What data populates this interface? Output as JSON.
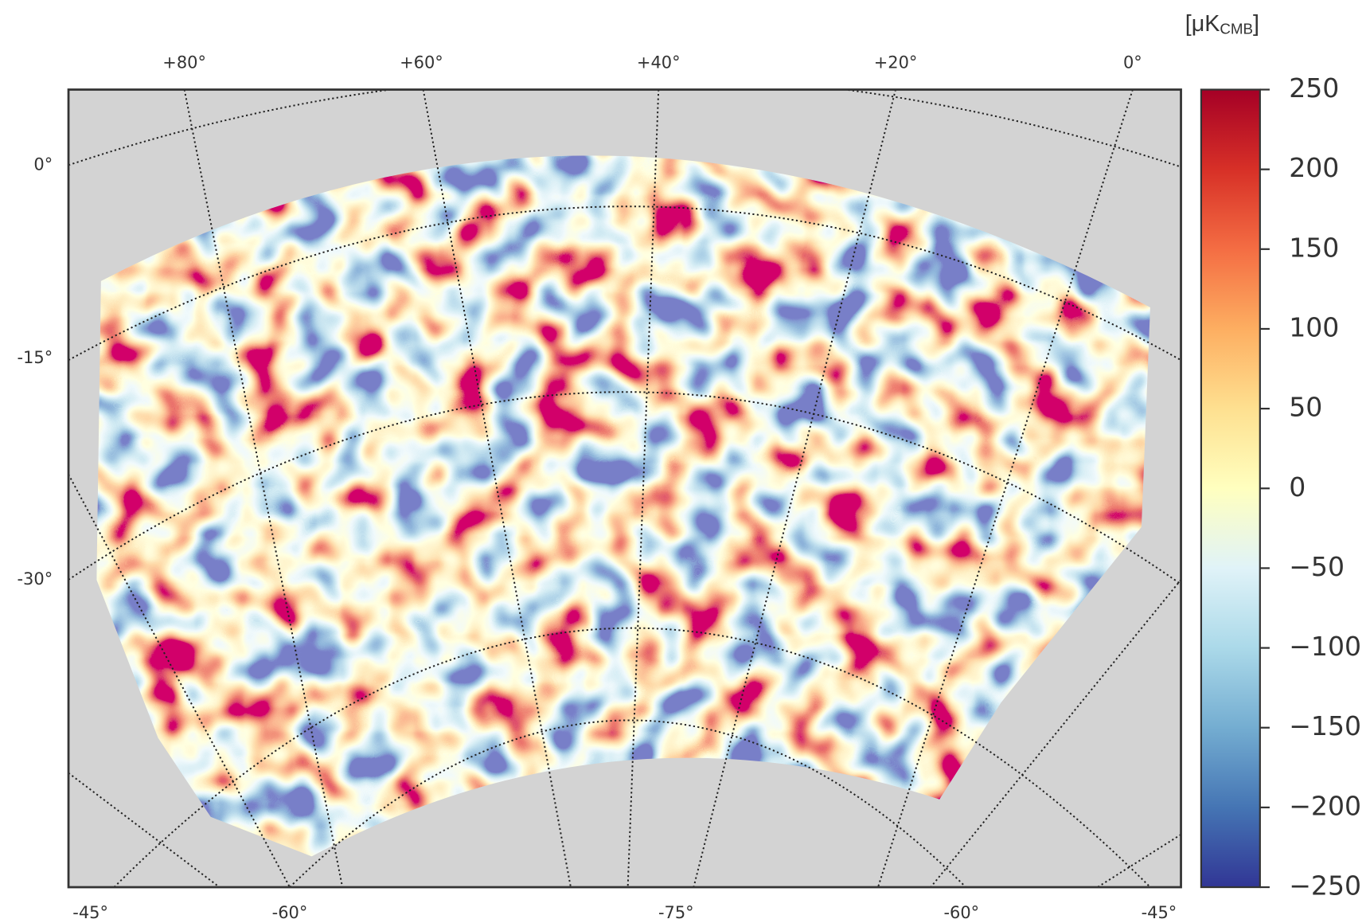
{
  "chart_data": {
    "type": "map",
    "colorbar_label": {
      "prefix": "[μK",
      "sub": "CMB",
      "suffix": "]"
    },
    "top_labels": [
      "+80°",
      "+60°",
      "+40°",
      "+20°",
      "0°"
    ],
    "left_labels": [
      "0°",
      "-15°",
      "-30°"
    ],
    "bottom_labels": [
      "-45°",
      "-60°",
      "-75°",
      "-60°",
      "-45°"
    ],
    "colors": [
      "#313695",
      "#4575b4",
      "#74add1",
      "#abd9e9",
      "#e0f3f8",
      "#ffffbf",
      "#fee090",
      "#fdae61",
      "#f46d43",
      "#d73027",
      "#a50026"
    ],
    "ylim": [
      -250,
      250
    ],
    "yticks": [
      {
        "value": -250,
        "label": "−250"
      },
      {
        "value": -200,
        "label": "−200"
      },
      {
        "value": -150,
        "label": "−150"
      },
      {
        "value": -100,
        "label": "−100"
      },
      {
        "value": -50,
        "label": "−50"
      },
      0,
      50,
      100,
      150,
      200,
      250
    ]
  }
}
